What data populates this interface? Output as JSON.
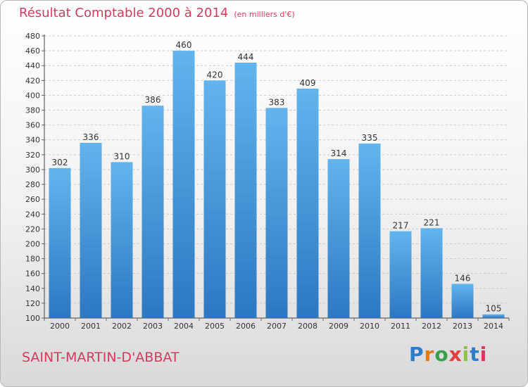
{
  "header": {
    "title": "Résultat Comptable 2000 à 2014",
    "subtitle": "(en milliers d'€)"
  },
  "footer": {
    "town": "SAINT-MARTIN-D'ABBAT",
    "logo_letters": [
      "P",
      "r",
      "o",
      "x",
      "i",
      "t",
      "i"
    ]
  },
  "colors": {
    "title": "#d23a5e",
    "bar_top": "#62b4ee",
    "bar_bottom": "#2b78c2",
    "grid": "#c8c8c8"
  },
  "chart_data": {
    "type": "bar",
    "title": "Résultat Comptable 2000 à 2014",
    "unit_label": "(en milliers d'€)",
    "xlabel": "",
    "ylabel": "",
    "ylim": [
      100,
      480
    ],
    "ytick_step": 20,
    "grid": true,
    "categories": [
      "2000",
      "2001",
      "2002",
      "2003",
      "2004",
      "2005",
      "2006",
      "2007",
      "2008",
      "2009",
      "2010",
      "2011",
      "2012",
      "2013",
      "2014"
    ],
    "values": [
      302,
      336,
      310,
      386,
      460,
      420,
      444,
      383,
      409,
      314,
      335,
      217,
      221,
      146,
      105
    ],
    "data_labels": [
      "302",
      "336",
      "310",
      "386",
      "460",
      "420",
      "444",
      "383",
      "409",
      "314",
      "335",
      "217",
      "221",
      "146",
      "105"
    ]
  }
}
